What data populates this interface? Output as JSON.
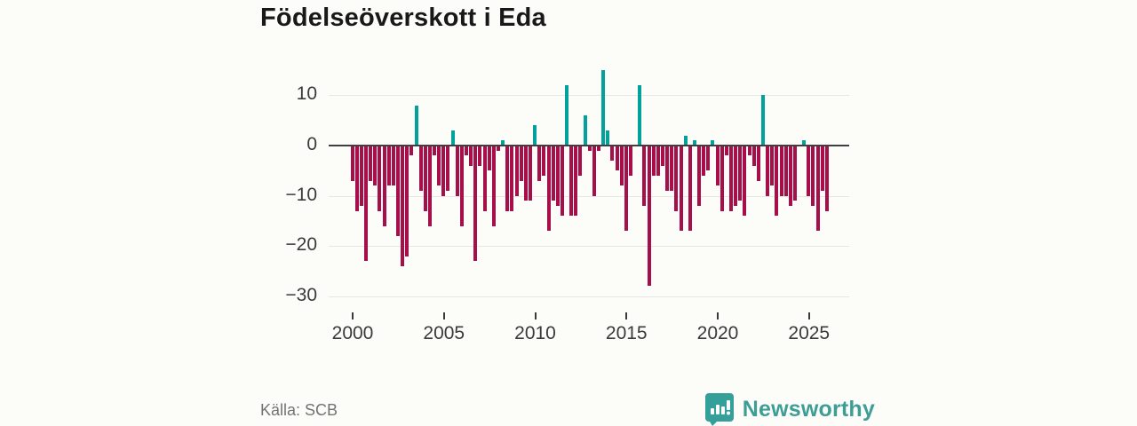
{
  "title": "Födelseöverskott i Eda",
  "source": "Källa: SCB",
  "brand": {
    "name": "Newsworthy"
  },
  "colors": {
    "positive": "#00a29b",
    "negative": "#a60f4a",
    "axis": "#3f3f3f",
    "grid": "#e7e7e3",
    "background": "#fcfcf9",
    "title_text": "#191919",
    "tick_text": "#3a3a3a",
    "muted_text": "#737373",
    "brand_teal": "#3d9e96"
  },
  "chart_data": {
    "type": "bar",
    "title": "Födelseöverskott i Eda",
    "frequency": "quarterly",
    "start_period": "2000-Q1",
    "end_period": "2026-Q1",
    "x_tick_years": [
      2000,
      2005,
      2010,
      2015,
      2020,
      2025
    ],
    "y_ticks": [
      10,
      0,
      -10,
      -20,
      -30
    ],
    "ylim": [
      -32,
      16.6
    ],
    "grid": true,
    "legend": false,
    "positive_color": "#00a29b",
    "negative_color": "#a60f4a",
    "values": [
      -7,
      -13,
      -12,
      -23,
      -7,
      -8,
      -13,
      -16,
      -8,
      -8,
      -18,
      -24,
      -22,
      -2,
      8,
      -9,
      -13,
      -16,
      -2,
      -8,
      -10,
      -9,
      3,
      -10,
      -16,
      -2,
      -4,
      -23,
      -4,
      -13,
      -5,
      -16,
      -1,
      1,
      -13,
      -13,
      -10,
      -7,
      -11,
      -11,
      4,
      -7,
      -6,
      -17,
      -11,
      -12,
      -14,
      12,
      -14,
      -14,
      -6,
      6,
      -1,
      -10,
      -1,
      15,
      3,
      -3,
      -5,
      -8,
      -17,
      -6,
      0,
      12,
      -12,
      -28,
      -6,
      -6,
      -4,
      -9,
      -9,
      -13,
      -17,
      2,
      -17,
      1,
      -12,
      -6,
      -5,
      1,
      -8,
      -13,
      -2,
      -13,
      -12,
      -11,
      -14,
      -2,
      -4,
      -7,
      10,
      -10,
      -8,
      -14,
      -10,
      -10,
      -12,
      -11,
      0,
      1,
      -10,
      -12,
      -17,
      -9,
      -13
    ]
  }
}
